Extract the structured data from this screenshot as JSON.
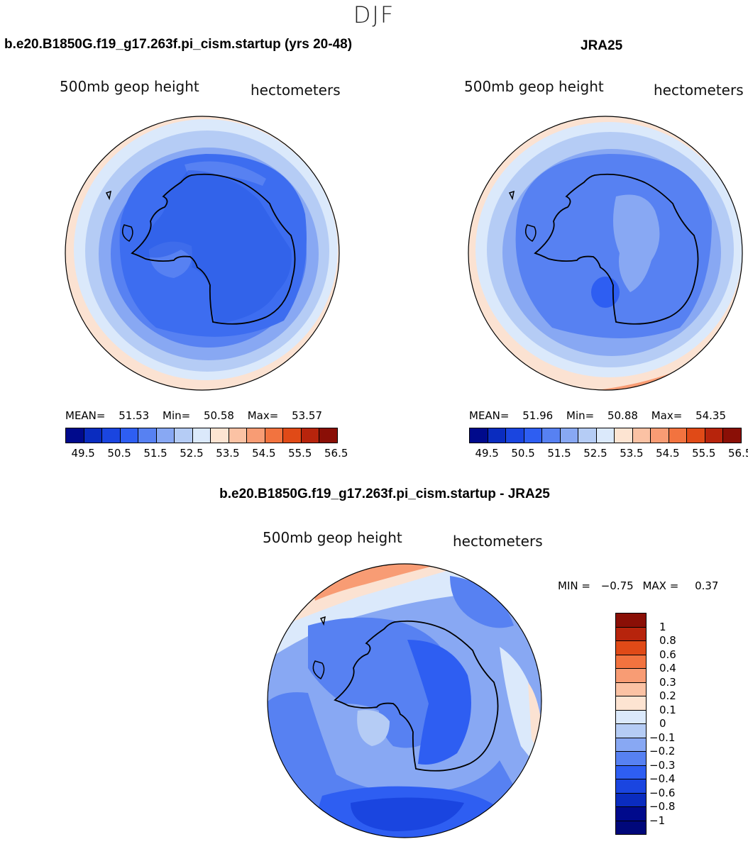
{
  "figure": {
    "season": "DJF",
    "diff_title": "b.e20.B1850G.f19_g17.263f.pi_cism.startup - JRA25"
  },
  "panels": {
    "model": {
      "title": "b.e20.B1850G.f19_g17.263f.pi_cism.startup (yrs 20-48)",
      "variable": "500mb geop height",
      "units": "hectometers",
      "mean_label": "MEAN=",
      "mean_value": "51.53",
      "min_label": "Min=",
      "min_value": "50.58",
      "max_label": "Max=",
      "max_value": "53.57"
    },
    "obs": {
      "title": "JRA25",
      "variable": "500mb geop height",
      "units": "hectometers",
      "mean_label": "MEAN=",
      "mean_value": "51.96",
      "min_label": "Min=",
      "min_value": "50.88",
      "max_label": "Max=",
      "max_value": "54.35"
    },
    "diff": {
      "variable": "500mb geop height",
      "units": "hectometers",
      "min_label": "MIN =",
      "min_value": "−0.75",
      "max_label": "MAX =",
      "max_value": "0.37"
    }
  },
  "abs_colorbar": {
    "ticks": [
      "49.5",
      "50.5",
      "51.5",
      "52.5",
      "53.5",
      "54.5",
      "55.5",
      "56.5"
    ],
    "colors": [
      "#000a8c",
      "#0a2cbf",
      "#1a45e0",
      "#2e5ef2",
      "#5781f2",
      "#88a8f3",
      "#b5ccf5",
      "#dbe9fb",
      "#fde4d2",
      "#fbc2a4",
      "#f89c74",
      "#f2733f",
      "#e04a17",
      "#b7240c",
      "#8a0f06"
    ]
  },
  "diff_colorbar": {
    "ticks": [
      "1",
      "0.8",
      "0.6",
      "0.4",
      "0.3",
      "0.2",
      "0.1",
      "0",
      "−0.1",
      "−0.2",
      "−0.3",
      "−0.4",
      "−0.6",
      "−0.8",
      "−1"
    ],
    "colors": [
      "#8a0f06",
      "#b7240c",
      "#e04a17",
      "#f2733f",
      "#f89c74",
      "#fbc2a4",
      "#fde4d2",
      "#dbe9fb",
      "#b5ccf5",
      "#88a8f3",
      "#5781f2",
      "#2e5ef2",
      "#1a45e0",
      "#0a2cbf",
      "#000a8c",
      "#00087a"
    ]
  },
  "map_colors": {
    "outer_peach": "#fbe2d2",
    "ring_light": "#dbe9fb",
    "ring_mid": "#b5ccf5",
    "ring_blue": "#88a8f3",
    "ring_mid_blue": "#5781f2",
    "core_blue": "#3d6df0",
    "deep_blue": "#2a5be6",
    "orange_band": "#f89c74"
  }
}
